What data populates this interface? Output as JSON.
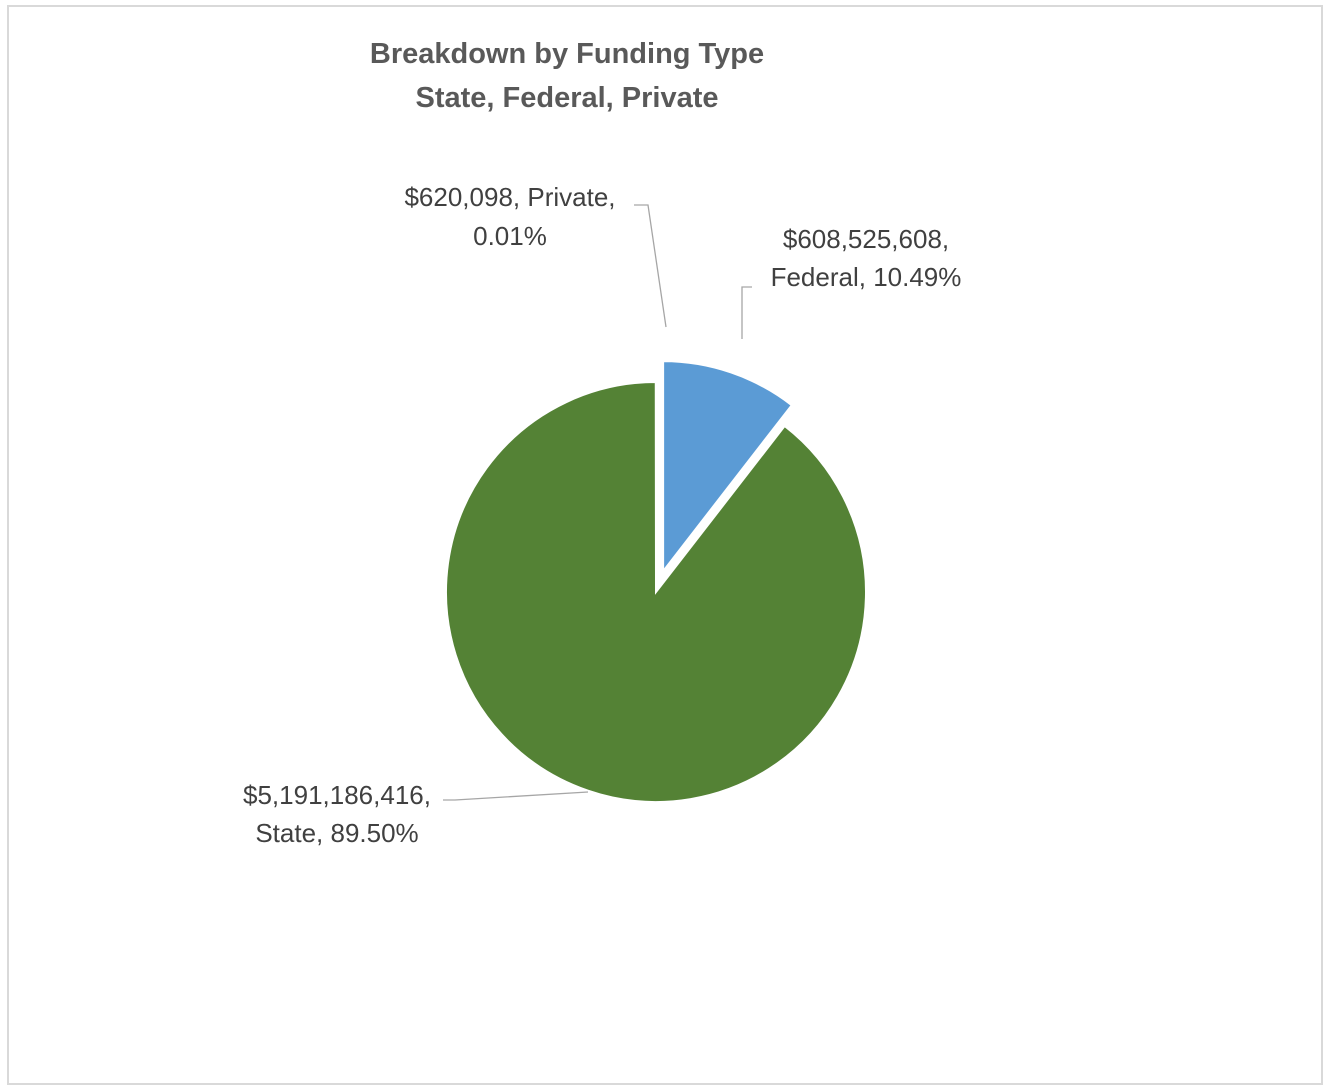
{
  "chart_data": {
    "type": "pie",
    "title": "Breakdown by Funding Type",
    "subtitle": "State, Federal, Private",
    "slices": [
      {
        "name": "Federal",
        "value": 608525608,
        "percent": 10.49,
        "color": "#5b9bd5",
        "exploded": true,
        "label_lines": [
          "$608,525,608,",
          "Federal, 10.49%"
        ]
      },
      {
        "name": "State",
        "value": 5191186416,
        "percent": 89.5,
        "color": "#548235",
        "exploded": false,
        "label_lines": [
          "$5,191,186,416,",
          "State, 89.50%"
        ]
      },
      {
        "name": "Private",
        "value": 620098,
        "percent": 0.01,
        "color": "#a5a5a5",
        "exploded": true,
        "label_lines": [
          "$620,098, Private,",
          "0.01%"
        ]
      }
    ],
    "legend": "none"
  }
}
